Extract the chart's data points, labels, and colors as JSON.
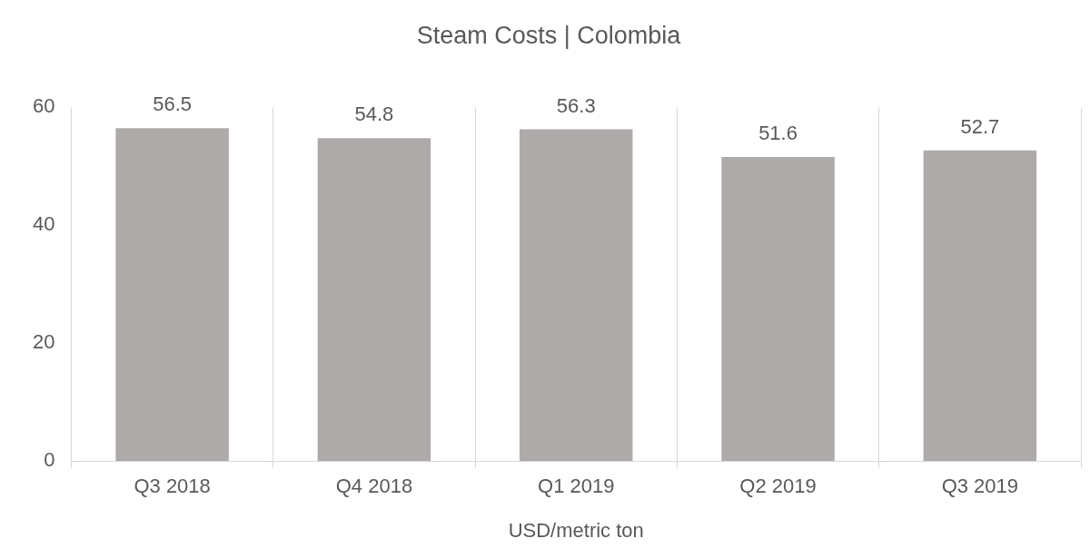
{
  "chart_data": {
    "type": "bar",
    "title": "Steam Costs | Colombia",
    "xlabel": "USD/metric ton",
    "categories": [
      "Q3 2018",
      "Q4 2018",
      "Q1 2019",
      "Q2 2019",
      "Q3 2019"
    ],
    "values": [
      56.5,
      54.8,
      56.3,
      51.6,
      52.7
    ],
    "color": "#aeaaaa",
    "ylim": [
      0,
      60
    ],
    "yticks": [
      0,
      20,
      40,
      60
    ],
    "grid": "x",
    "data_labels": true,
    "legend": false
  }
}
